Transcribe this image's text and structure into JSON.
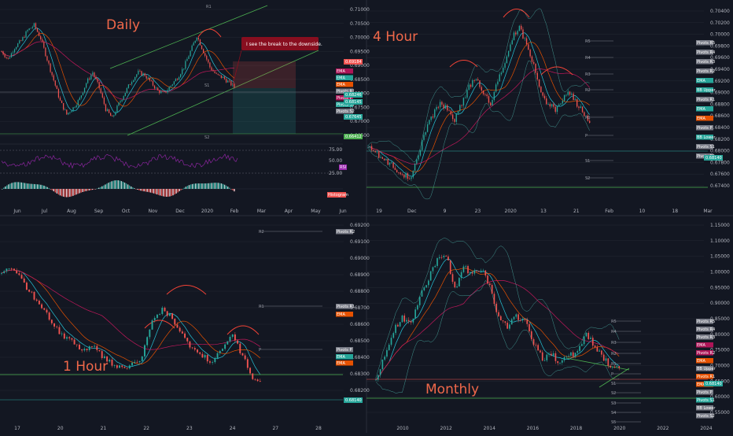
{
  "colors": {
    "bg": "#131722",
    "bull": "#26a69a",
    "bear": "#ef5350",
    "ma_long": "#c2185b",
    "ma_mid": "#e65100",
    "ma_short": "#26c6da",
    "channel": "#4caf50",
    "arc": "#f44336",
    "grid": "#2a2e39"
  },
  "chart_data": [
    {
      "type": "candlestick",
      "title": "Daily",
      "annotation": "I see the break to the downside.",
      "x_ticks": [
        "Jun",
        "Jul",
        "Aug",
        "Sep",
        "Oct",
        "Nov",
        "Dec",
        "2020",
        "Feb",
        "Mar",
        "Apr",
        "May",
        "Jun"
      ],
      "y_ticks": [
        "0.71000",
        "0.70500",
        "0.70000",
        "0.69500",
        "0.69000",
        "0.68500",
        "0.68000",
        "0.67500",
        "0.67000",
        "0.66500"
      ],
      "ylim": [
        0.664,
        0.712
      ],
      "close": [
        0.696,
        0.693,
        0.6975,
        0.7,
        0.704,
        0.706,
        0.701,
        0.693,
        0.685,
        0.677,
        0.672,
        0.6745,
        0.678,
        0.684,
        0.688,
        0.682,
        0.674,
        0.6705,
        0.676,
        0.6805,
        0.685,
        0.688,
        0.687,
        0.684,
        0.681,
        0.68,
        0.683,
        0.686,
        0.69,
        0.696,
        0.702,
        0.696,
        0.69,
        0.687,
        0.686,
        0.684,
        0.682
      ],
      "current_price": "0.68246",
      "price_badges": [
        "0.69184",
        "0.68145",
        "0.67645",
        "0.66412"
      ],
      "pivot_labels": [
        "R1",
        "S1",
        "S2"
      ],
      "indicator_labels": [
        "EMA",
        "EMA",
        "EMA",
        "Pivots R1",
        "Pivots P",
        "Pivots S1",
        "Pivots S2"
      ],
      "rsi": {
        "label": "RSI",
        "levels": [
          "75.00",
          "50.00",
          "25.00"
        ]
      },
      "histogram": {
        "label": "Histogram"
      }
    },
    {
      "type": "candlestick",
      "title": "4 Hour",
      "x_ticks": [
        "19",
        "Dec",
        "9",
        "23",
        "2020",
        "13",
        "21",
        "Feb",
        "10",
        "18",
        "Mar"
      ],
      "y_ticks": [
        "0.70400",
        "0.70200",
        "0.70000",
        "0.69800",
        "0.69600",
        "0.69400",
        "0.69200",
        "0.69000",
        "0.68800",
        "0.68600",
        "0.68400",
        "0.68200",
        "0.68000",
        "0.67800",
        "0.67600",
        "0.67400"
      ],
      "ylim": [
        0.673,
        0.705
      ],
      "close": [
        0.68,
        0.679,
        0.678,
        0.677,
        0.676,
        0.675,
        0.6745,
        0.679,
        0.683,
        0.686,
        0.688,
        0.687,
        0.685,
        0.688,
        0.691,
        0.693,
        0.69,
        0.688,
        0.692,
        0.696,
        0.7,
        0.702,
        0.699,
        0.695,
        0.69,
        0.688,
        0.687,
        0.689,
        0.69,
        0.688,
        0.686,
        0.684
      ],
      "current_price": "0.68140",
      "pivot_labels": [
        "R5",
        "R4",
        "R3",
        "R2",
        "R1",
        "P",
        "S1",
        "S2"
      ],
      "indicator_labels": [
        "Pivots R5",
        "Pivots R4",
        "Pivots R3",
        "Pivots R2",
        "EMA",
        "BB Upper",
        "Pivots R1",
        "EMA",
        "EMA",
        "Pivots P",
        "BB Lower",
        "Pivots S1",
        "Pivots S2"
      ]
    },
    {
      "type": "candlestick",
      "title": "1 Hour",
      "x_ticks": [
        "17",
        "20",
        "21",
        "22",
        "23",
        "24",
        "27",
        "28"
      ],
      "y_ticks": [
        "0.69200",
        "0.69100",
        "0.69000",
        "0.68900",
        "0.68800",
        "0.68700",
        "0.68600",
        "0.68500",
        "0.68400",
        "0.68300",
        "0.68200"
      ],
      "ylim": [
        0.681,
        0.693
      ],
      "close": [
        0.6895,
        0.6898,
        0.689,
        0.688,
        0.687,
        0.686,
        0.685,
        0.6845,
        0.684,
        0.6842,
        0.6835,
        0.683,
        0.6826,
        0.6828,
        0.6835,
        0.686,
        0.687,
        0.6862,
        0.6852,
        0.684,
        0.6835,
        0.683,
        0.684,
        0.685,
        0.6835,
        0.682,
        0.6814
      ],
      "current_price": "0.68140",
      "pivot_labels": [
        "R2",
        "R1",
        "P"
      ],
      "indicator_labels": [
        "Pivots R2",
        "Pivots R1",
        "EMA",
        "Pivots P",
        "EMA",
        "EMA"
      ]
    },
    {
      "type": "candlestick",
      "title": "Monthly",
      "x_ticks": [
        "2010",
        "2012",
        "2014",
        "2016",
        "2018",
        "2020",
        "2022",
        "2024"
      ],
      "y_ticks": [
        "1.15000",
        "1.10000",
        "1.05000",
        "1.00000",
        "0.95000",
        "0.90000",
        "0.85000",
        "0.80000",
        "0.75000",
        "0.70000",
        "0.65000",
        "0.60000",
        "0.55000"
      ],
      "ylim": [
        0.53,
        1.17
      ],
      "close": [
        0.64,
        0.72,
        0.81,
        0.85,
        0.83,
        0.93,
        0.99,
        1.05,
        1.07,
        0.95,
        1.03,
        1.0,
        1.02,
        0.96,
        0.85,
        0.82,
        0.86,
        0.84,
        0.77,
        0.71,
        0.73,
        0.7,
        0.72,
        0.74,
        0.8,
        0.75,
        0.71,
        0.69,
        0.68
      ],
      "current_price": "0.68140",
      "pivot_labels": [
        "R5",
        "R4",
        "R3",
        "R2",
        "R1",
        "P",
        "S1",
        "S2",
        "S3",
        "S4",
        "S5"
      ],
      "indicator_labels": [
        "Pivots R5",
        "Pivots R4",
        "Pivots R3",
        "EMA",
        "Pivots R2",
        "EMA",
        "BB Upper",
        "Pivots R1",
        "EMA",
        "Pivots P",
        "Pivots S1",
        "BB Lower",
        "Pivots S2"
      ]
    }
  ]
}
